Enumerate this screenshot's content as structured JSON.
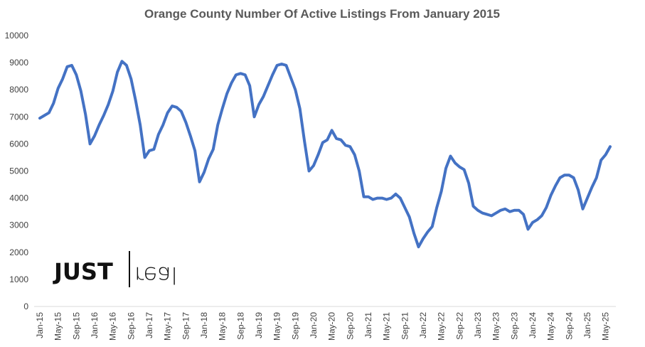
{
  "chart_data": {
    "type": "line",
    "title": "Orange County Number Of Active Listings From January 2015",
    "xlabel": "",
    "ylabel": "",
    "ylim": [
      0,
      10000
    ],
    "yticks": [
      0,
      1000,
      2000,
      3000,
      4000,
      5000,
      6000,
      7000,
      8000,
      9000,
      10000
    ],
    "grid": false,
    "legend": "none",
    "color": "#4472C4",
    "x_tick_labels": [
      "Jan-15",
      "May-15",
      "Sep-15",
      "Jan-16",
      "May-16",
      "Sep-16",
      "Jan-17",
      "May-17",
      "Sep-17",
      "Jan-18",
      "May-18",
      "Sep-18",
      "Jan-19",
      "May-19",
      "Sep-19",
      "Jan-20",
      "May-20",
      "Sep-20",
      "Jan-21",
      "May-21",
      "Sep-21",
      "Jan-22",
      "May-22",
      "Sep-22",
      "Jan-23",
      "May-23",
      "Sep-23",
      "Jan-24",
      "May-24",
      "Sep-24",
      "Jan-25",
      "May-25"
    ],
    "series": [
      {
        "x": [
          "Jan-15",
          "Feb-15",
          "Mar-15",
          "Apr-15",
          "May-15",
          "Jun-15",
          "Jul-15",
          "Aug-15",
          "Sep-15",
          "Oct-15",
          "Nov-15",
          "Dec-15",
          "Jan-16",
          "Feb-16",
          "Mar-16",
          "Apr-16",
          "May-16",
          "Jun-16",
          "Jul-16",
          "Aug-16",
          "Sep-16",
          "Oct-16",
          "Nov-16",
          "Dec-16",
          "Jan-17",
          "Feb-17",
          "Mar-17",
          "Apr-17",
          "May-17",
          "Jun-17",
          "Jul-17",
          "Aug-17",
          "Sep-17",
          "Oct-17",
          "Nov-17",
          "Dec-17",
          "Jan-18",
          "Feb-18",
          "Mar-18",
          "Apr-18",
          "May-18",
          "Jun-18",
          "Jul-18",
          "Aug-18",
          "Sep-18",
          "Oct-18",
          "Nov-18",
          "Dec-18",
          "Jan-19",
          "Feb-19",
          "Mar-19",
          "Apr-19",
          "May-19",
          "Jun-19",
          "Jul-19",
          "Aug-19",
          "Sep-19",
          "Oct-19",
          "Nov-19",
          "Dec-19",
          "Jan-20",
          "Feb-20",
          "Mar-20",
          "Apr-20",
          "May-20",
          "Jun-20",
          "Jul-20",
          "Aug-20",
          "Sep-20",
          "Oct-20",
          "Nov-20",
          "Dec-20",
          "Jan-21",
          "Feb-21",
          "Mar-21",
          "Apr-21",
          "May-21",
          "Jun-21",
          "Jul-21",
          "Aug-21",
          "Sep-21",
          "Oct-21",
          "Nov-21",
          "Dec-21",
          "Jan-22",
          "Feb-22",
          "Mar-22",
          "Apr-22",
          "May-22",
          "Jun-22",
          "Jul-22",
          "Aug-22",
          "Sep-22",
          "Oct-22",
          "Nov-22",
          "Dec-22",
          "Jan-23",
          "Feb-23",
          "Mar-23",
          "Apr-23",
          "May-23",
          "Jun-23",
          "Jul-23",
          "Aug-23",
          "Sep-23",
          "Oct-23",
          "Nov-23",
          "Dec-23",
          "Jan-24",
          "Feb-24",
          "Mar-24",
          "Apr-24",
          "May-24",
          "Jun-24",
          "Jul-24",
          "Aug-24",
          "Sep-24",
          "Oct-24",
          "Nov-24",
          "Dec-24",
          "Jan-25",
          "Feb-25",
          "Mar-25",
          "Apr-25",
          "May-25",
          "Jun-25"
        ],
        "values": [
          6950,
          7050,
          7150,
          7500,
          8050,
          8400,
          8850,
          8900,
          8550,
          7950,
          7100,
          6000,
          6300,
          6700,
          7050,
          7450,
          7950,
          8650,
          9050,
          8900,
          8400,
          7600,
          6700,
          5500,
          5750,
          5800,
          6350,
          6700,
          7150,
          7400,
          7350,
          7200,
          6800,
          6300,
          5750,
          4600,
          4950,
          5450,
          5800,
          6700,
          7300,
          7850,
          8250,
          8550,
          8600,
          8550,
          8150,
          7000,
          7450,
          7750,
          8150,
          8550,
          8900,
          8950,
          8900,
          8450,
          8000,
          7300,
          6100,
          5000,
          5200,
          5600,
          6050,
          6150,
          6500,
          6200,
          6150,
          5950,
          5900,
          5600,
          5000,
          4050,
          4050,
          3950,
          4000,
          4000,
          3950,
          4000,
          4150,
          4000,
          3650,
          3300,
          2700,
          2200,
          2500,
          2750,
          2950,
          3650,
          4250,
          5100,
          5550,
          5300,
          5150,
          5050,
          4550,
          3700,
          3550,
          3450,
          3400,
          3350,
          3450,
          3550,
          3600,
          3500,
          3550,
          3550,
          3400,
          2850,
          3100,
          3200,
          3350,
          3650,
          4100,
          4450,
          4750,
          4850,
          4850,
          4750,
          4300,
          3600,
          4000,
          4400,
          4750,
          5400,
          5600,
          5900
        ]
      }
    ]
  },
  "logo": {
    "left": "JUST",
    "right": "real"
  }
}
